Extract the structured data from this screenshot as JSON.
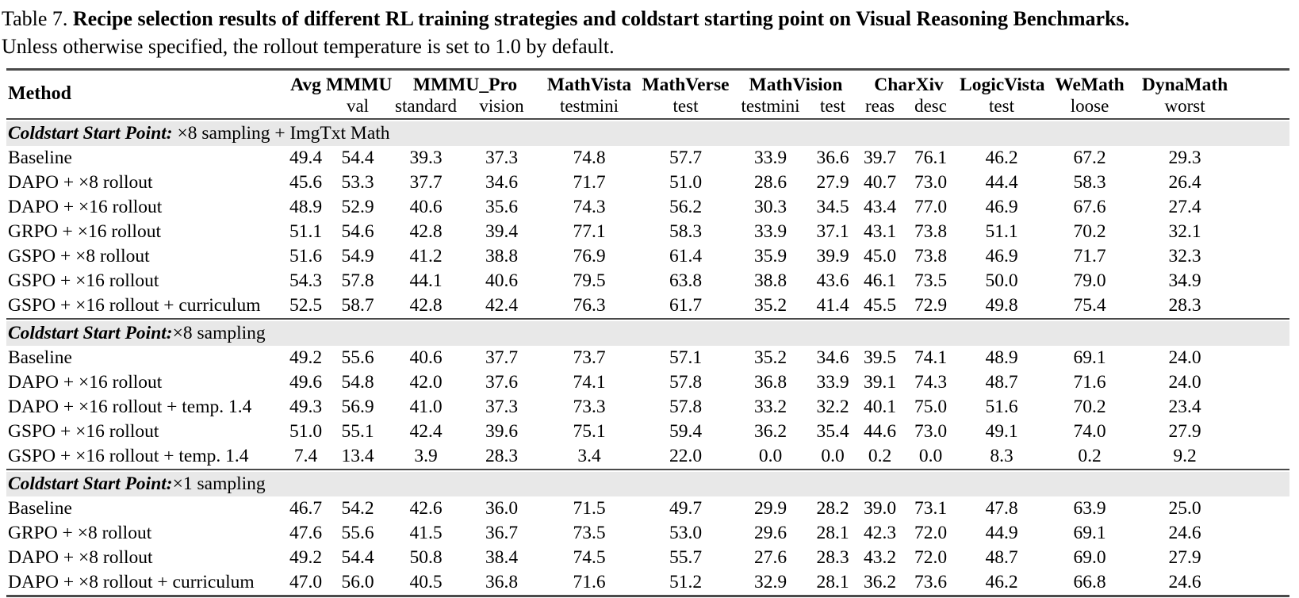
{
  "caption": {
    "label": "Table 7.",
    "title_bold": "Recipe selection results of different RL training strategies and coldstart starting point on Visual Reasoning Benchmarks.",
    "subtitle": "Unless otherwise specified, the rollout temperature is set to 1.0 by default."
  },
  "colors": {
    "background": "#ffffff",
    "text": "#000000",
    "rule": "#4a4a4a",
    "section_band": "#e8e8e8"
  },
  "table": {
    "method_header": "Method",
    "column_groups": [
      {
        "label": "Avg",
        "subs": [
          ""
        ]
      },
      {
        "label": "MMMU",
        "subs": [
          "val"
        ]
      },
      {
        "label": "MMMU_Pro",
        "subs": [
          "standard",
          "vision"
        ]
      },
      {
        "label": "MathVista",
        "subs": [
          "testmini"
        ]
      },
      {
        "label": "MathVerse",
        "subs": [
          "test"
        ]
      },
      {
        "label": "MathVision",
        "subs": [
          "testmini",
          "test"
        ]
      },
      {
        "label": "CharXiv",
        "subs": [
          "reas",
          "desc"
        ]
      },
      {
        "label": "LogicVista",
        "subs": [
          "test"
        ]
      },
      {
        "label": "WeMath",
        "subs": [
          "loose"
        ]
      },
      {
        "label": "DynaMath",
        "subs": [
          "worst"
        ]
      }
    ],
    "sections": [
      {
        "header": {
          "bold_italic": "Coldstart Start Point:",
          "rest": " ×8 sampling + ImgTxt Math"
        },
        "rows": [
          {
            "method": "Baseline",
            "values": [
              "49.4",
              "54.4",
              "39.3",
              "37.3",
              "74.8",
              "57.7",
              "33.9",
              "36.6",
              "39.7",
              "76.1",
              "46.2",
              "67.2",
              "29.3"
            ]
          },
          {
            "method": "DAPO + ×8 rollout",
            "values": [
              "45.6",
              "53.3",
              "37.7",
              "34.6",
              "71.7",
              "51.0",
              "28.6",
              "27.9",
              "40.7",
              "73.0",
              "44.4",
              "58.3",
              "26.4"
            ]
          },
          {
            "method": "DAPO + ×16 rollout",
            "values": [
              "48.9",
              "52.9",
              "40.6",
              "35.6",
              "74.3",
              "56.2",
              "30.3",
              "34.5",
              "43.4",
              "77.0",
              "46.9",
              "67.6",
              "27.4"
            ]
          },
          {
            "method": "GRPO + ×16 rollout",
            "values": [
              "51.1",
              "54.6",
              "42.8",
              "39.4",
              "77.1",
              "58.3",
              "33.9",
              "37.1",
              "43.1",
              "73.8",
              "51.1",
              "70.2",
              "32.1"
            ]
          },
          {
            "method": "GSPO + ×8 rollout",
            "values": [
              "51.6",
              "54.9",
              "41.2",
              "38.8",
              "76.9",
              "61.4",
              "35.9",
              "39.9",
              "45.0",
              "73.8",
              "46.9",
              "71.7",
              "32.3"
            ]
          },
          {
            "method": "GSPO + ×16 rollout",
            "values": [
              "54.3",
              "57.8",
              "44.1",
              "40.6",
              "79.5",
              "63.8",
              "38.8",
              "43.6",
              "46.1",
              "73.5",
              "50.0",
              "79.0",
              "34.9"
            ]
          },
          {
            "method": "GSPO + ×16 rollout + curriculum",
            "values": [
              "52.5",
              "58.7",
              "42.8",
              "42.4",
              "76.3",
              "61.7",
              "35.2",
              "41.4",
              "45.5",
              "72.9",
              "49.8",
              "75.4",
              "28.3"
            ]
          }
        ]
      },
      {
        "header": {
          "bold_italic": "Coldstart Start Point:",
          "rest": "×8 sampling"
        },
        "rows": [
          {
            "method": "Baseline",
            "values": [
              "49.2",
              "55.6",
              "40.6",
              "37.7",
              "73.7",
              "57.1",
              "35.2",
              "34.6",
              "39.5",
              "74.1",
              "48.9",
              "69.1",
              "24.0"
            ]
          },
          {
            "method": "DAPO + ×16 rollout",
            "values": [
              "49.6",
              "54.8",
              "42.0",
              "37.6",
              "74.1",
              "57.8",
              "36.8",
              "33.9",
              "39.1",
              "74.3",
              "48.7",
              "71.6",
              "24.0"
            ]
          },
          {
            "method": "DAPO + ×16 rollout + temp. 1.4",
            "values": [
              "49.3",
              "56.9",
              "41.0",
              "37.3",
              "73.3",
              "57.8",
              "33.2",
              "32.2",
              "40.1",
              "75.0",
              "51.6",
              "70.2",
              "23.4"
            ]
          },
          {
            "method": "GSPO + ×16 rollout",
            "values": [
              "51.0",
              "55.1",
              "42.4",
              "39.6",
              "75.1",
              "59.4",
              "36.2",
              "35.4",
              "44.6",
              "73.0",
              "49.1",
              "74.0",
              "27.9"
            ]
          },
          {
            "method": "GSPO + ×16 rollout + temp. 1.4",
            "values": [
              "7.4",
              "13.4",
              "3.9",
              "28.3",
              "3.4",
              "22.0",
              "0.0",
              "0.0",
              "0.2",
              "0.0",
              "8.3",
              "0.2",
              "9.2"
            ]
          }
        ]
      },
      {
        "header": {
          "bold_italic": "Coldstart Start Point:",
          "rest": "×1 sampling"
        },
        "rows": [
          {
            "method": "Baseline",
            "values": [
              "46.7",
              "54.2",
              "42.6",
              "36.0",
              "71.5",
              "49.7",
              "29.9",
              "28.2",
              "39.0",
              "73.1",
              "47.8",
              "63.9",
              "25.0"
            ]
          },
          {
            "method": "GRPO + ×8 rollout",
            "values": [
              "47.6",
              "55.6",
              "41.5",
              "36.7",
              "73.5",
              "53.0",
              "29.6",
              "28.1",
              "42.3",
              "72.0",
              "44.9",
              "69.1",
              "24.6"
            ]
          },
          {
            "method": "DAPO + ×8 rollout",
            "values": [
              "49.2",
              "54.4",
              "50.8",
              "38.4",
              "74.5",
              "55.7",
              "27.6",
              "28.3",
              "43.2",
              "72.0",
              "48.7",
              "69.0",
              "27.9"
            ]
          },
          {
            "method": "DAPO + ×8 rollout + curriculum",
            "values": [
              "47.0",
              "56.0",
              "40.5",
              "36.8",
              "71.6",
              "51.2",
              "32.9",
              "28.1",
              "36.2",
              "73.6",
              "46.2",
              "66.8",
              "24.6"
            ]
          }
        ]
      }
    ]
  }
}
